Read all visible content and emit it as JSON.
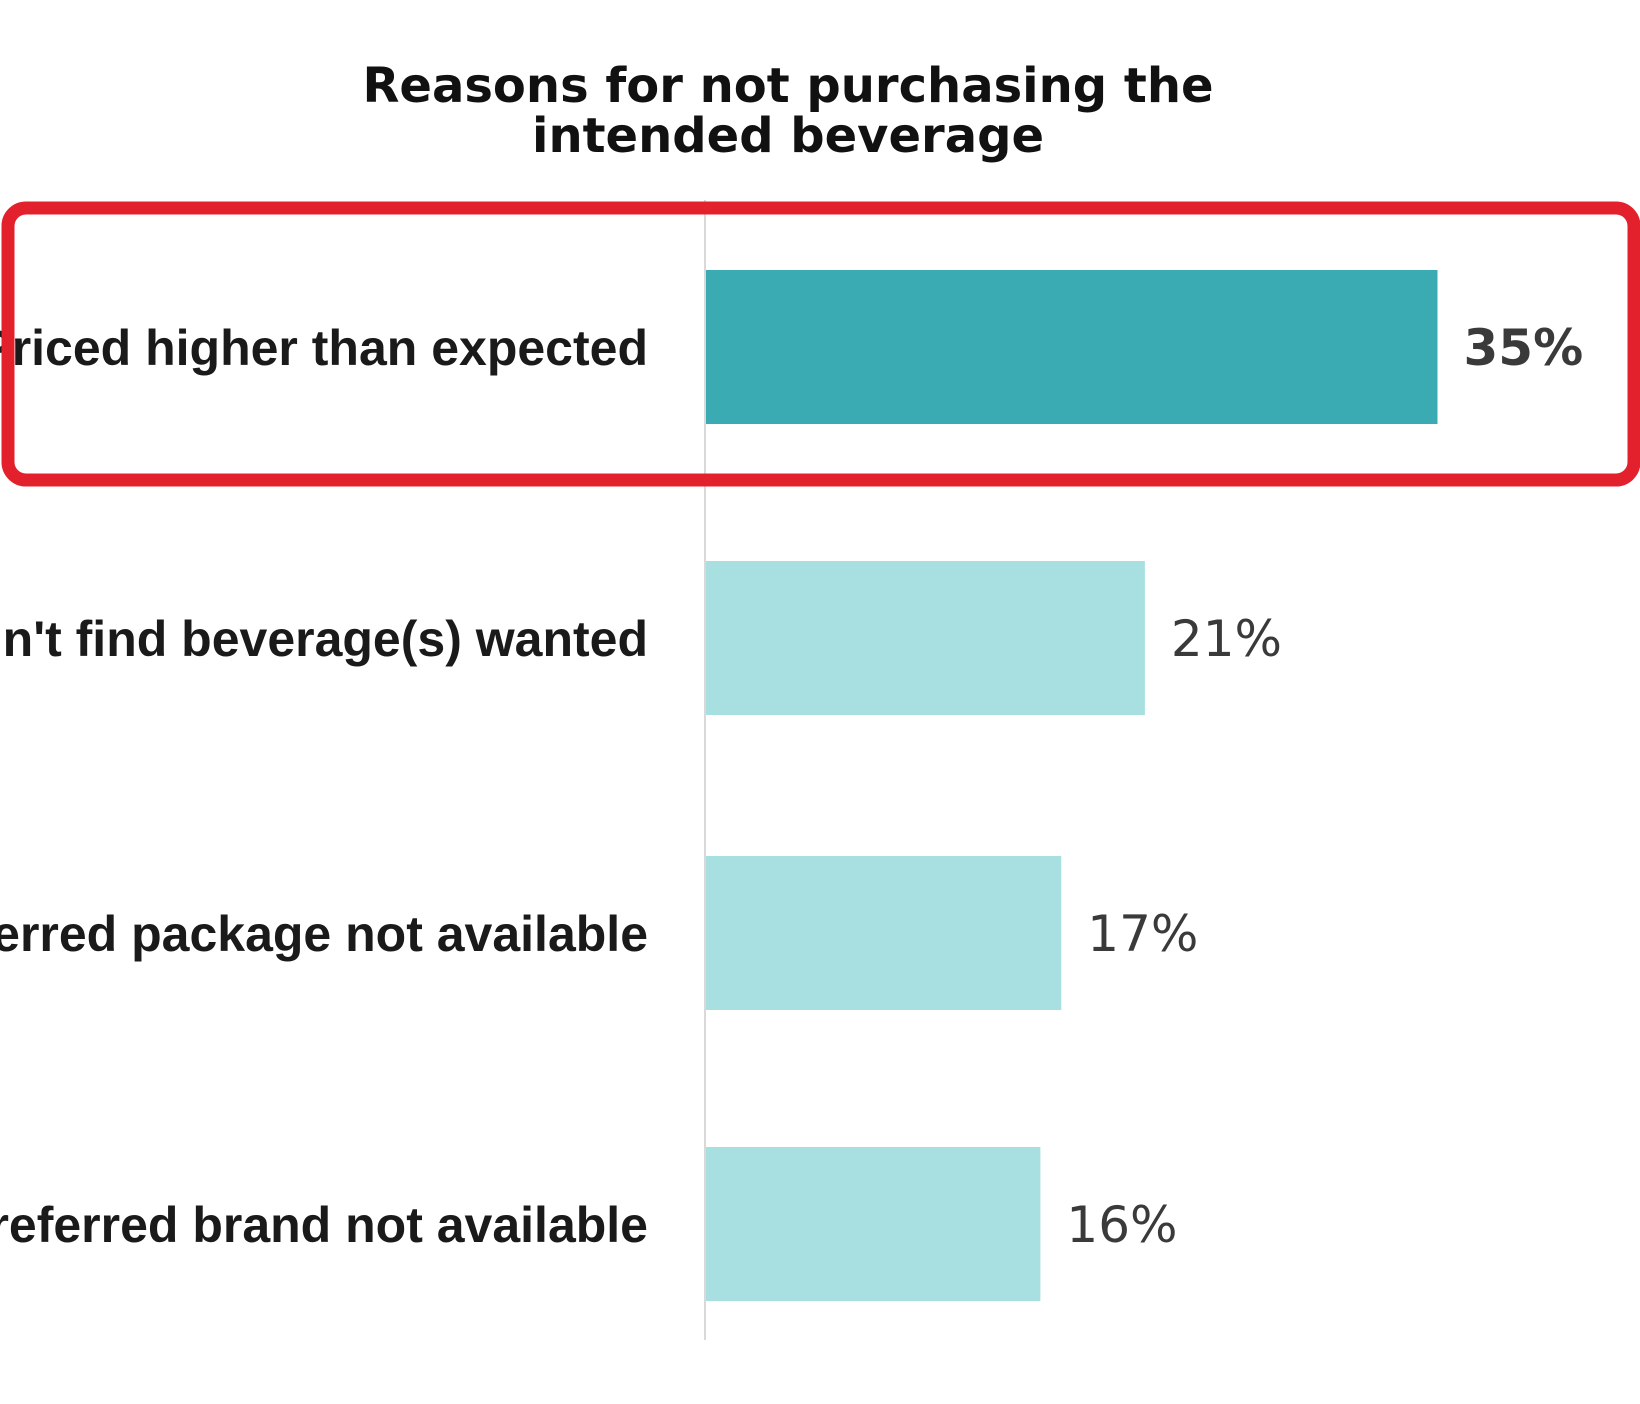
{
  "chart_data": {
    "type": "bar",
    "orientation": "horizontal",
    "title": "Reasons for not purchasing the intended beverage",
    "title_lines": [
      "Reasons for not purchasing the",
      "intended beverage"
    ],
    "categories": [
      "Priced higher than expected",
      "Couldn't find beverage(s) wanted",
      "Preferred package not available",
      "Preferred brand not available"
    ],
    "values": [
      35,
      21,
      17,
      16
    ],
    "value_labels": [
      "35%",
      "21%",
      "17%",
      "16%"
    ],
    "unit": "%",
    "xlim": [
      0,
      40
    ],
    "grid": false,
    "highlighted_index": 0,
    "colors": {
      "highlight_bar": "#3aabb3",
      "bar": "#a8e0e2",
      "highlight_label": "#4fc3c9",
      "label": "#3a3a3a",
      "highlight_box": "#e3212d",
      "axis_line": "#d9d9d9"
    }
  }
}
